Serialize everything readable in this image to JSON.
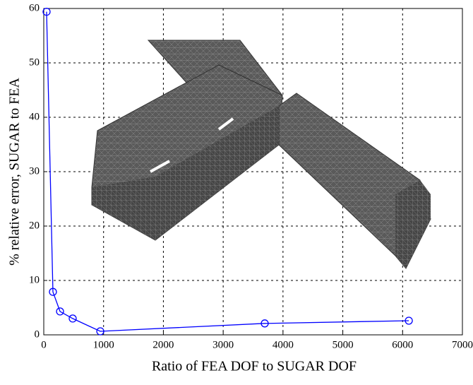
{
  "chart_data": {
    "type": "line",
    "xlabel": "Ratio of FEA DOF to SUGAR DOF",
    "ylabel": "% relative error, SUGAR to FEA",
    "x": [
      47,
      153,
      272,
      484,
      945,
      3695,
      6104
    ],
    "values": [
      59.4,
      7.9,
      4.3,
      3.0,
      0.65,
      2.1,
      2.6
    ],
    "color": "#0000ff",
    "xlim": [
      0,
      7000
    ],
    "xticks": [
      0,
      1000,
      2000,
      3000,
      4000,
      5000,
      6000,
      7000
    ],
    "ylim": [
      0,
      60
    ],
    "yticks": [
      0,
      10,
      20,
      30,
      40,
      50,
      60
    ],
    "grid": true
  }
}
